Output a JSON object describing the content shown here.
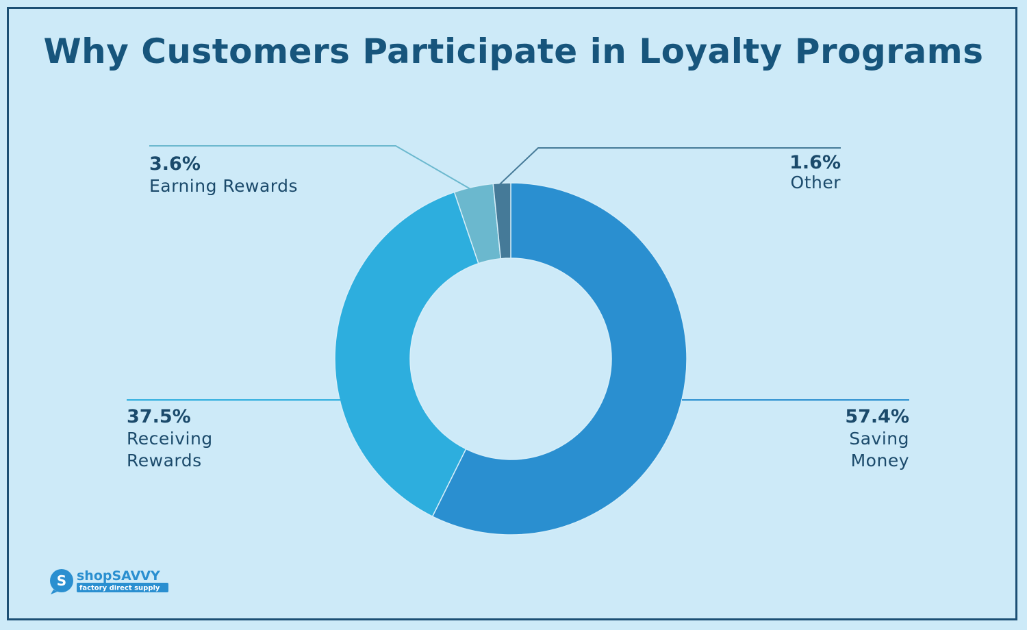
{
  "chart_data": {
    "type": "pie",
    "title": "Why Customers Participate in Loyalty Programs",
    "slices": [
      {
        "label_lines": [
          "Saving",
          "Money"
        ],
        "value": 57.4,
        "value_label": "57.4%",
        "color": "#2a8fd0"
      },
      {
        "label_lines": [
          "Receiving",
          "Rewards"
        ],
        "value": 37.5,
        "value_label": "37.5%",
        "color": "#2daede"
      },
      {
        "label_lines": [
          "Earning Rewards"
        ],
        "value": 3.6,
        "value_label": "3.6%",
        "color": "#6bb8ce"
      },
      {
        "label_lines": [
          "Other"
        ],
        "value": 1.6,
        "value_label": "1.6%",
        "color": "#457a98"
      }
    ],
    "donut": true,
    "start": "12 o'clock",
    "direction": "clockwise"
  },
  "logo": {
    "top": "shopSAVVY",
    "bottom": "factory direct supply"
  },
  "colors": {
    "background": "#cdeaf8",
    "title": "#17557c",
    "text": "#1b4a6b",
    "border": "#1c4f74"
  }
}
